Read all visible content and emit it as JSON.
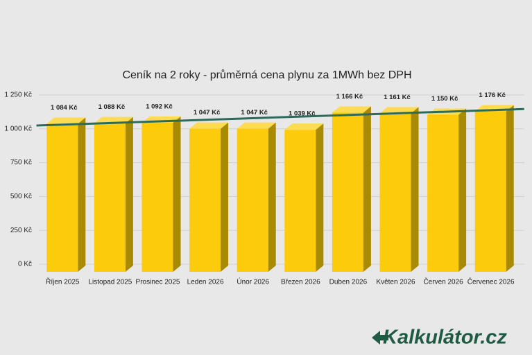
{
  "chart_data": {
    "type": "bar3d",
    "title": "Ceník na 2 roky - průměrná cena plynu za 1MWh bez DPH",
    "categories": [
      "Říjen 2025",
      "Listopad 2025",
      "Prosinec 2025",
      "Leden 2026",
      "Únor 2026",
      "Březen 2026",
      "Duben 2026",
      "Květen 2026",
      "Červen 2026",
      "Červenec 2026"
    ],
    "values": [
      1084,
      1088,
      1092,
      1047,
      1047,
      1039,
      1166,
      1161,
      1150,
      1176
    ],
    "value_labels": [
      "1 084 Kč",
      "1 088 Kč",
      "1 092 Kč",
      "1 047 Kč",
      "1 047 Kč",
      "1 039 Kč",
      "1 166 Kč",
      "1 161 Kč",
      "1 150 Kč",
      "1 176 Kč"
    ],
    "color": "#fccb0c",
    "trendline": true,
    "trendline_color": "#2c6b5c",
    "ylim": [
      0,
      1250
    ],
    "yticks": [
      {
        "value": 0,
        "label": "0 Kč"
      },
      {
        "value": 250,
        "label": "250 Kč"
      },
      {
        "value": 500,
        "label": "500 Kč"
      },
      {
        "value": 750,
        "label": "750 Kč"
      },
      {
        "value": 1000,
        "label": "1 000 Kč"
      },
      {
        "value": 1250,
        "label": "1 250 Kč"
      }
    ],
    "grid": true
  },
  "brand": "Kalkulátor.cz"
}
